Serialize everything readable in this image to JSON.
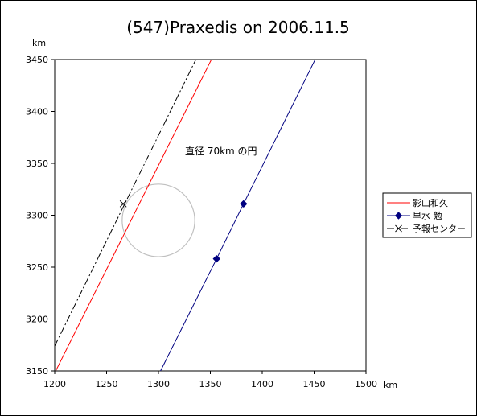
{
  "chart_data": {
    "type": "line",
    "title": "(547)Praxedis on 2006.11.5",
    "xlabel": "km",
    "ylabel": "km",
    "xlim": [
      1200,
      1500
    ],
    "ylim": [
      3150,
      3450
    ],
    "x_ticks": [
      "1200",
      "1250",
      "1300",
      "1350",
      "1400",
      "1450",
      "1500"
    ],
    "y_ticks": [
      "3450",
      "3400",
      "3350",
      "3300",
      "3250",
      "3200",
      "3150"
    ],
    "annotation": "直径 70km の円",
    "circle": {
      "center": [
        1300,
        3295
      ],
      "diameter": 70,
      "color": "#c0c0c0"
    },
    "legend_position": "right",
    "series": [
      {
        "name": "影山和久",
        "color": "#ff0000",
        "style": "solid",
        "marker": "none",
        "points": [
          [
            1201,
            3150
          ],
          [
            1352,
            3452
          ]
        ]
      },
      {
        "name": "早水 勉",
        "color": "#000080",
        "style": "solid",
        "marker": "diamond",
        "points": [
          [
            1302,
            3150
          ],
          [
            1356,
            3258
          ],
          [
            1382,
            3311
          ],
          [
            1452,
            3452
          ]
        ],
        "marker_points": [
          [
            1356,
            3258
          ],
          [
            1382,
            3311
          ]
        ]
      },
      {
        "name": "予報センター",
        "color": "#000000",
        "style": "dashdot",
        "marker": "x",
        "points": [
          [
            1200,
            3174
          ],
          [
            1337,
            3452
          ]
        ],
        "marker_points": [
          [
            1266,
            3311
          ]
        ]
      }
    ]
  }
}
